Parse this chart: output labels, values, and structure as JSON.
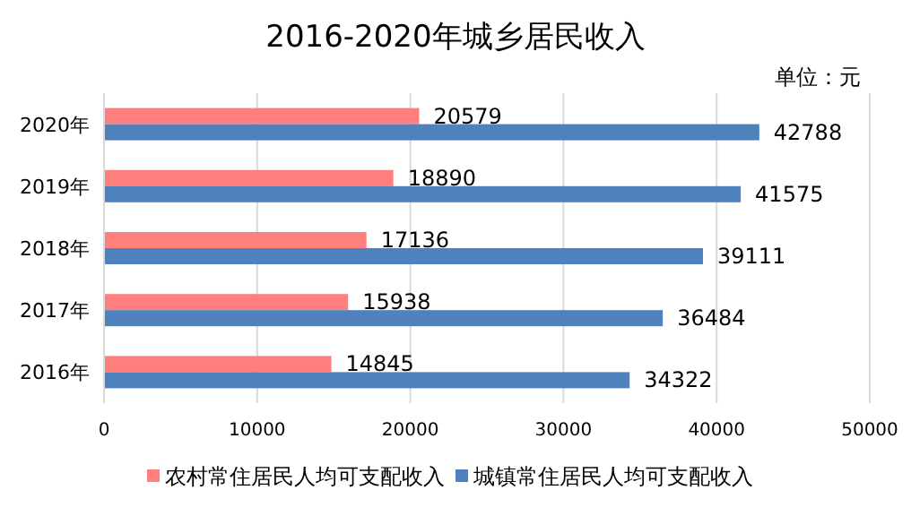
{
  "chart_data": {
    "type": "bar",
    "orientation": "horizontal",
    "title": "2016-2020年城乡居民收入",
    "annotations": [
      "单位：元"
    ],
    "categories": [
      "2020年",
      "2019年",
      "2018年",
      "2017年",
      "2016年"
    ],
    "series": [
      {
        "name": "农村常住居民人均可支配收入",
        "color": "#ff7f7f",
        "values": [
          20579,
          18890,
          17136,
          15938,
          14845
        ]
      },
      {
        "name": "城镇常住居民人均可支配收入",
        "color": "#4f81bd",
        "values": [
          42788,
          41575,
          39111,
          36484,
          34322
        ]
      }
    ],
    "xlim": [
      0,
      50000
    ],
    "xticks": [
      0,
      10000,
      20000,
      30000,
      40000,
      50000
    ],
    "grid": "x",
    "legend": "bottom",
    "data_labels": true
  }
}
